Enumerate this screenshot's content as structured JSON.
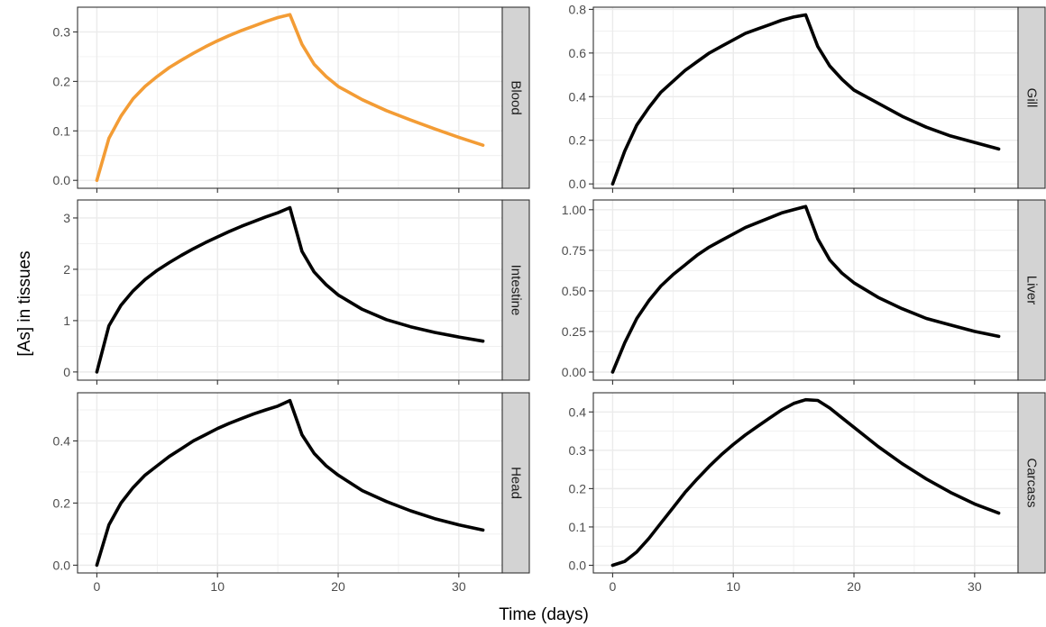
{
  "figure": {
    "xlabel": "Time (days)",
    "ylabel": "[As] in tissues"
  },
  "colors": {
    "highlight": "#f39c35",
    "line": "#000000",
    "strip": "#d3d3d3",
    "grid": "#ebebeb",
    "panel_border": "#333333"
  },
  "chart_data": {
    "type": "line",
    "facets": "2 columns x 3 rows, shared x axis",
    "xlim": [
      -1.6,
      33.6
    ],
    "x_ticks": [
      0,
      10,
      20,
      30
    ],
    "grid": true,
    "panels": [
      {
        "name": "Blood",
        "color": "highlight",
        "ylim": [
          -0.016,
          0.35
        ],
        "y_ticks": [
          0.0,
          0.1,
          0.2,
          0.3
        ],
        "y_tick_labels": [
          "0.0",
          "0.1",
          "0.2",
          "0.3"
        ],
        "x": [
          0,
          1,
          2,
          3,
          4,
          5,
          6,
          7,
          8,
          9,
          10,
          11,
          12,
          13,
          14,
          15,
          16,
          17,
          18,
          19,
          20,
          22,
          24,
          26,
          28,
          30,
          32
        ],
        "y": [
          0.0,
          0.085,
          0.13,
          0.165,
          0.19,
          0.21,
          0.228,
          0.243,
          0.257,
          0.27,
          0.282,
          0.293,
          0.303,
          0.312,
          0.321,
          0.329,
          0.335,
          0.275,
          0.235,
          0.21,
          0.19,
          0.163,
          0.141,
          0.122,
          0.104,
          0.087,
          0.071
        ]
      },
      {
        "name": "Gill",
        "color": "line",
        "ylim": [
          -0.02,
          0.81
        ],
        "y_ticks": [
          0.0,
          0.2,
          0.4,
          0.6,
          0.8
        ],
        "y_tick_labels": [
          "0.0",
          "0.2",
          "0.4",
          "0.6",
          "0.8"
        ],
        "x": [
          0,
          1,
          2,
          3,
          4,
          5,
          6,
          7,
          8,
          9,
          10,
          11,
          12,
          13,
          14,
          15,
          16,
          17,
          18,
          19,
          20,
          22,
          24,
          26,
          28,
          30,
          32
        ],
        "y": [
          0.0,
          0.15,
          0.27,
          0.35,
          0.42,
          0.47,
          0.52,
          0.56,
          0.6,
          0.63,
          0.66,
          0.69,
          0.71,
          0.73,
          0.75,
          0.765,
          0.775,
          0.63,
          0.54,
          0.48,
          0.43,
          0.37,
          0.31,
          0.26,
          0.22,
          0.19,
          0.16
        ]
      },
      {
        "name": "Intestine",
        "color": "line",
        "ylim": [
          -0.16,
          3.35
        ],
        "y_ticks": [
          0,
          1,
          2,
          3
        ],
        "y_tick_labels": [
          "0",
          "1",
          "2",
          "3"
        ],
        "x": [
          0,
          1,
          2,
          3,
          4,
          5,
          6,
          7,
          8,
          9,
          10,
          11,
          12,
          13,
          14,
          15,
          16,
          17,
          18,
          19,
          20,
          22,
          24,
          26,
          28,
          30,
          32
        ],
        "y": [
          0.0,
          0.9,
          1.3,
          1.58,
          1.8,
          1.98,
          2.13,
          2.27,
          2.4,
          2.52,
          2.63,
          2.74,
          2.84,
          2.93,
          3.02,
          3.1,
          3.2,
          2.35,
          1.95,
          1.7,
          1.5,
          1.22,
          1.02,
          0.88,
          0.77,
          0.68,
          0.6
        ]
      },
      {
        "name": "Liver",
        "color": "line",
        "ylim": [
          -0.05,
          1.06
        ],
        "y_ticks": [
          0.0,
          0.25,
          0.5,
          0.75,
          1.0
        ],
        "y_tick_labels": [
          "0.00",
          "0.25",
          "0.50",
          "0.75",
          "1.00"
        ],
        "x": [
          0,
          1,
          2,
          3,
          4,
          5,
          6,
          7,
          8,
          9,
          10,
          11,
          12,
          13,
          14,
          15,
          16,
          17,
          18,
          19,
          20,
          22,
          24,
          26,
          28,
          30,
          32
        ],
        "y": [
          0.0,
          0.18,
          0.33,
          0.44,
          0.53,
          0.6,
          0.66,
          0.72,
          0.77,
          0.81,
          0.85,
          0.89,
          0.92,
          0.95,
          0.98,
          1.0,
          1.02,
          0.82,
          0.69,
          0.61,
          0.55,
          0.46,
          0.39,
          0.33,
          0.29,
          0.25,
          0.22
        ]
      },
      {
        "name": "Head",
        "color": "line",
        "ylim": [
          -0.025,
          0.555
        ],
        "y_ticks": [
          0.0,
          0.2,
          0.4
        ],
        "y_tick_labels": [
          "0.0",
          "0.2",
          "0.4"
        ],
        "x": [
          0,
          1,
          2,
          3,
          4,
          5,
          6,
          7,
          8,
          9,
          10,
          11,
          12,
          13,
          14,
          15,
          16,
          17,
          18,
          19,
          20,
          22,
          24,
          26,
          28,
          30,
          32
        ],
        "y": [
          0.0,
          0.13,
          0.2,
          0.25,
          0.29,
          0.32,
          0.35,
          0.375,
          0.4,
          0.42,
          0.44,
          0.457,
          0.472,
          0.487,
          0.5,
          0.512,
          0.53,
          0.42,
          0.36,
          0.32,
          0.29,
          0.24,
          0.205,
          0.175,
          0.15,
          0.13,
          0.113
        ]
      },
      {
        "name": "Carcass",
        "color": "line",
        "ylim": [
          -0.02,
          0.45
        ],
        "y_ticks": [
          0.0,
          0.1,
          0.2,
          0.3,
          0.4
        ],
        "y_tick_labels": [
          "0.0",
          "0.1",
          "0.2",
          "0.3",
          "0.4"
        ],
        "x": [
          0,
          1,
          2,
          3,
          4,
          5,
          6,
          7,
          8,
          9,
          10,
          11,
          12,
          13,
          14,
          15,
          16,
          17,
          18,
          19,
          20,
          22,
          24,
          26,
          28,
          30,
          32
        ],
        "y": [
          0.0,
          0.01,
          0.035,
          0.07,
          0.11,
          0.15,
          0.19,
          0.225,
          0.258,
          0.288,
          0.315,
          0.34,
          0.362,
          0.384,
          0.405,
          0.422,
          0.432,
          0.43,
          0.41,
          0.385,
          0.36,
          0.31,
          0.265,
          0.225,
          0.19,
          0.16,
          0.136
        ]
      }
    ]
  }
}
